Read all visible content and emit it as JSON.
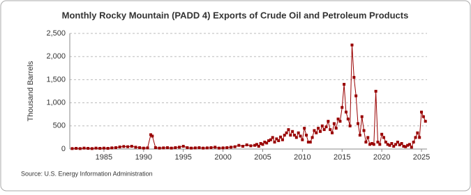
{
  "chart_data": {
    "type": "line",
    "title": "Monthly Rocky Mountain (PADD 4) Exports of Crude Oil and Petroleum Products",
    "y_label": "Thousand Barrels",
    "source": "Source: U.S. Energy Information Administration",
    "xlim": [
      1980.7,
      2025.7
    ],
    "xticks": [
      1985,
      1990,
      1995,
      2000,
      2005,
      2010,
      2015,
      2020,
      2025
    ],
    "ylim": [
      0,
      2500
    ],
    "yticks": [
      0,
      500,
      {
        "value": 1000,
        "label": "1,000"
      },
      {
        "value": 1500,
        "label": "1,500"
      },
      {
        "value": 2000,
        "label": "2,000"
      },
      {
        "value": 2500,
        "label": "2,500"
      }
    ],
    "grid": true,
    "series": [
      {
        "color": "#990000",
        "x": [
          1981,
          1981.5,
          1982,
          1982.5,
          1983,
          1983.5,
          1984,
          1984.5,
          1985,
          1985.5,
          1986,
          1986.5,
          1987,
          1987.5,
          1988,
          1988.5,
          1989,
          1989.5,
          1990,
          1990.5,
          1990.9,
          1991.1,
          1991.5,
          1992,
          1992.5,
          1993,
          1993.5,
          1994,
          1994.5,
          1995,
          1995.5,
          1996,
          1996.5,
          1997,
          1997.5,
          1998,
          1998.5,
          1999,
          1999.5,
          2000,
          2000.5,
          2001,
          2001.5,
          2002,
          2002.5,
          2003,
          2003.5,
          2004,
          2004.25,
          2004.5,
          2004.75,
          2005,
          2005.25,
          2005.5,
          2005.75,
          2006,
          2006.25,
          2006.5,
          2006.75,
          2007,
          2007.25,
          2007.5,
          2007.75,
          2008,
          2008.25,
          2008.5,
          2008.75,
          2009,
          2009.25,
          2009.5,
          2009.75,
          2010,
          2010.25,
          2010.5,
          2010.75,
          2011,
          2011.25,
          2011.5,
          2011.75,
          2012,
          2012.25,
          2012.5,
          2012.75,
          2013,
          2013.25,
          2013.5,
          2013.75,
          2014,
          2014.25,
          2014.5,
          2014.75,
          2015,
          2015.25,
          2015.5,
          2015.75,
          2016,
          2016.25,
          2016.5,
          2016.75,
          2017,
          2017.25,
          2017.5,
          2017.75,
          2018,
          2018.25,
          2018.5,
          2018.75,
          2019,
          2019.25,
          2019.5,
          2019.75,
          2020,
          2020.25,
          2020.5,
          2020.75,
          2021,
          2021.25,
          2021.5,
          2021.75,
          2022,
          2022.25,
          2022.5,
          2022.75,
          2023,
          2023.25,
          2023.5,
          2023.75,
          2024,
          2024.25,
          2024.5,
          2024.75,
          2025,
          2025.25,
          2025.5
        ],
        "values": [
          10,
          15,
          10,
          20,
          15,
          10,
          20,
          15,
          20,
          15,
          25,
          30,
          45,
          55,
          50,
          60,
          40,
          30,
          20,
          25,
          310,
          280,
          30,
          20,
          25,
          30,
          20,
          30,
          40,
          60,
          30,
          20,
          25,
          30,
          20,
          25,
          30,
          40,
          20,
          25,
          30,
          40,
          50,
          80,
          60,
          90,
          70,
          80,
          100,
          60,
          120,
          100,
          150,
          130,
          180,
          200,
          250,
          150,
          220,
          180,
          260,
          200,
          300,
          350,
          420,
          300,
          380,
          300,
          250,
          350,
          280,
          200,
          450,
          300,
          150,
          150,
          250,
          400,
          350,
          450,
          380,
          500,
          420,
          480,
          600,
          420,
          350,
          550,
          450,
          650,
          600,
          900,
          1400,
          800,
          650,
          500,
          2250,
          1550,
          1150,
          550,
          300,
          700,
          400,
          150,
          250,
          100,
          120,
          100,
          1250,
          150,
          100,
          320,
          250,
          150,
          100,
          80,
          120,
          60,
          100,
          150,
          90,
          120,
          60,
          50,
          80,
          100,
          40,
          150,
          250,
          350,
          250,
          800,
          700,
          600
        ]
      }
    ]
  }
}
